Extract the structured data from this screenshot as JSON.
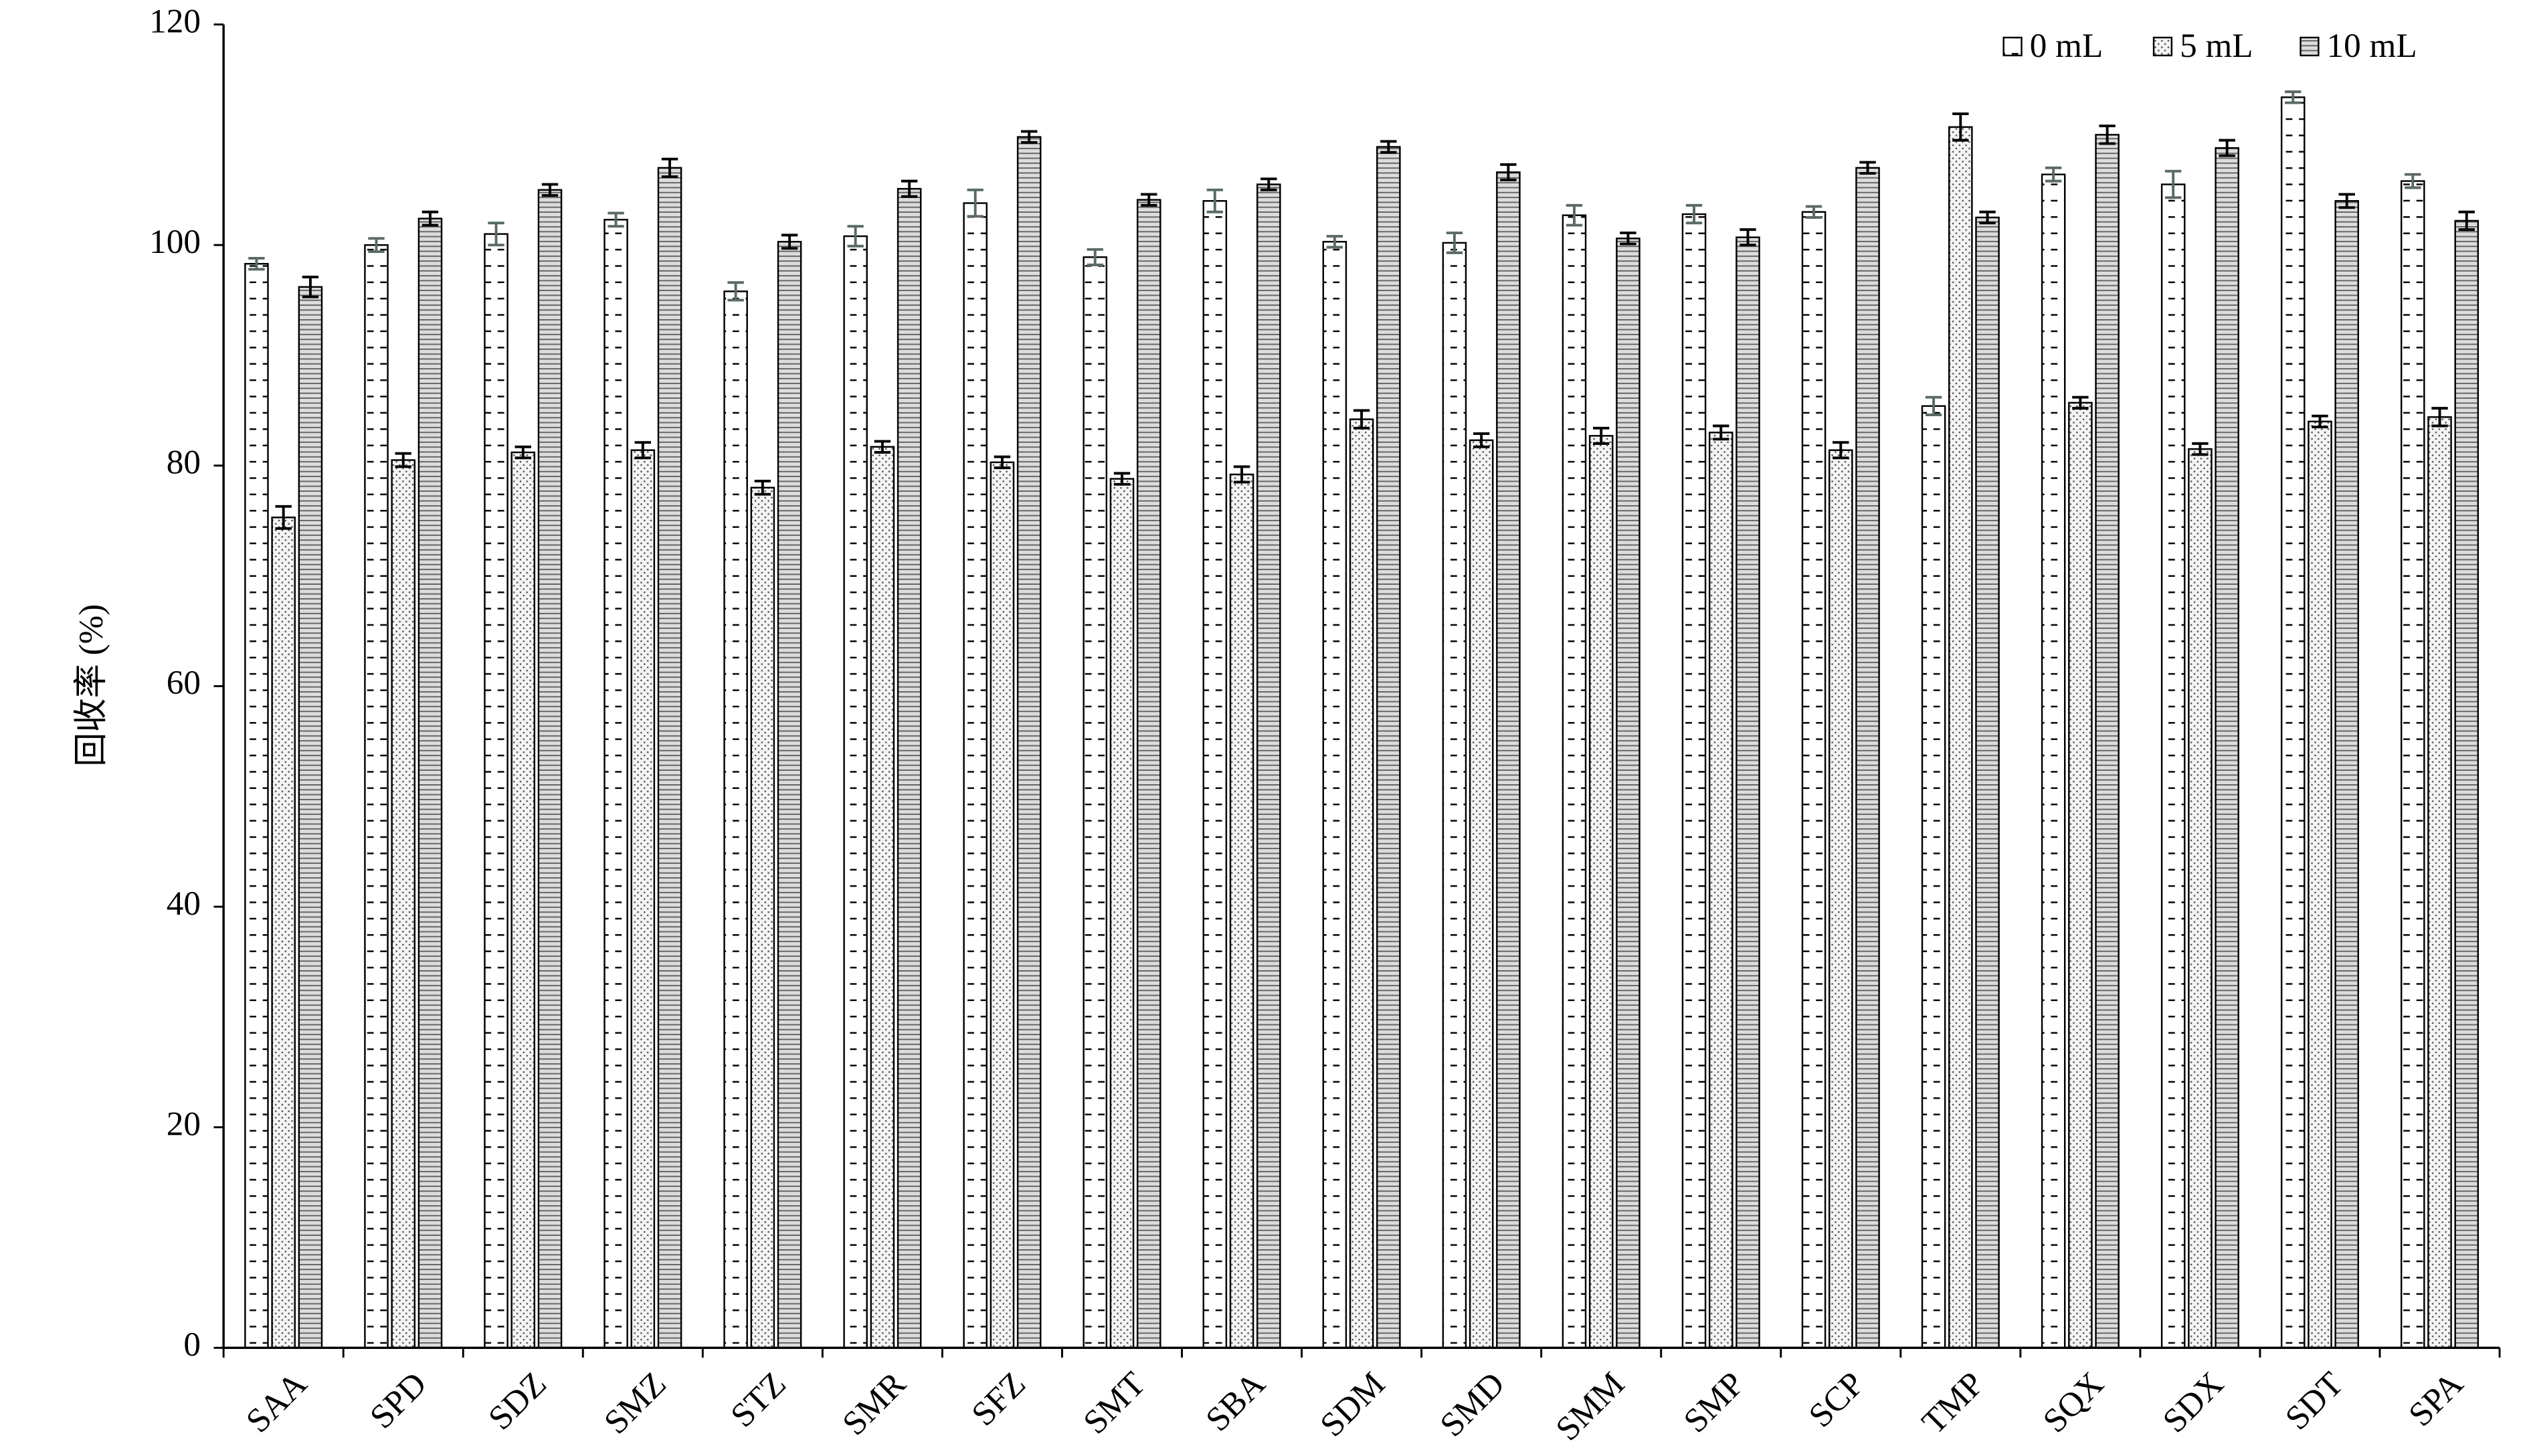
{
  "chart_data": {
    "type": "bar",
    "ylabel": "回收率 (%)",
    "categories": [
      "SAA",
      "SPD",
      "SDZ",
      "SMZ",
      "STZ",
      "SMR",
      "SFZ",
      "SMT",
      "SBA",
      "SDM",
      "SMD",
      "SMM",
      "SMP",
      "SCP",
      "TMP",
      "SQX",
      "SDX",
      "SDT",
      "SPA"
    ],
    "series": [
      {
        "name": "0 mL",
        "color": "#ffffff",
        "values": [
          98.3,
          100,
          101,
          102.3,
          95.8,
          100.8,
          103.8,
          98.9,
          104,
          100.3,
          100.2,
          102.7,
          102.8,
          103,
          85.4,
          106.4,
          105.5,
          113.4,
          105.8
        ],
        "errors": [
          0.5,
          0.6,
          1.0,
          0.6,
          0.8,
          0.9,
          1.2,
          0.7,
          1.0,
          0.5,
          0.9,
          0.9,
          0.8,
          0.5,
          0.8,
          0.6,
          1.2,
          0.5,
          0.6
        ]
      },
      {
        "name": "5 mL",
        "color": "#f4f4f4",
        "values": [
          75.3,
          80.5,
          81.2,
          81.4,
          78,
          81.7,
          80.3,
          78.8,
          79.2,
          84.2,
          82.3,
          82.7,
          83,
          81.4,
          110.7,
          85.7,
          81.5,
          84,
          84.4
        ],
        "errors": [
          1.0,
          0.6,
          0.5,
          0.7,
          0.6,
          0.5,
          0.5,
          0.5,
          0.7,
          0.8,
          0.6,
          0.7,
          0.6,
          0.7,
          1.2,
          0.5,
          0.5,
          0.5,
          0.8
        ]
      },
      {
        "name": "10 mL",
        "color": "#dcdcdc",
        "values": [
          96.2,
          102.4,
          105,
          107,
          100.3,
          105.1,
          109.8,
          104.1,
          105.5,
          108.9,
          106.6,
          100.6,
          100.7,
          107,
          102.5,
          110,
          108.8,
          104,
          102.2
        ],
        "errors": [
          0.9,
          0.6,
          0.5,
          0.8,
          0.6,
          0.7,
          0.5,
          0.5,
          0.5,
          0.5,
          0.7,
          0.5,
          0.7,
          0.5,
          0.5,
          0.8,
          0.7,
          0.6,
          0.8
        ]
      }
    ],
    "ylim": [
      0,
      120
    ],
    "yticks": [
      0,
      20,
      40,
      60,
      80,
      100,
      120
    ],
    "legend": "top-right"
  }
}
